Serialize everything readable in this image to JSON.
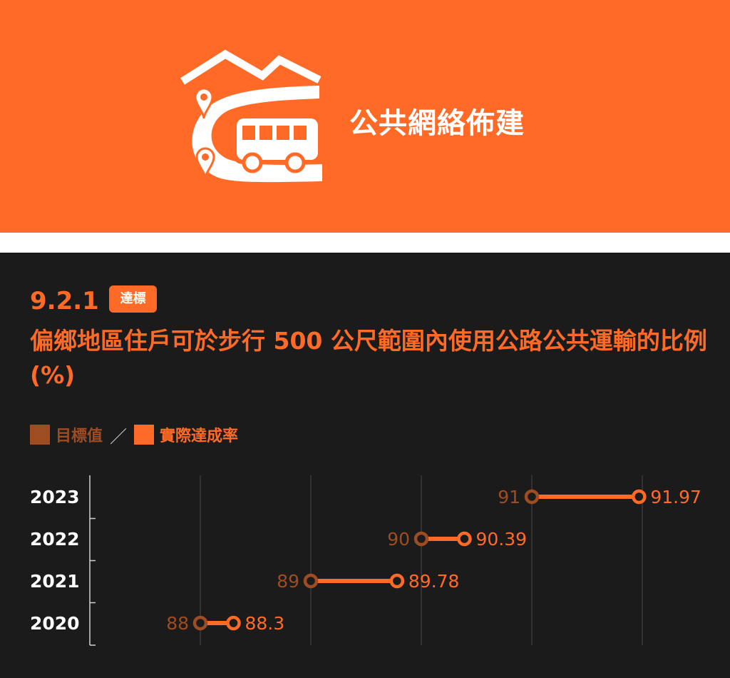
{
  "header": {
    "title": "公共網絡佈建",
    "icon": "bus-road-mountain-icon",
    "bg_color": "#ff6b27"
  },
  "indicator": {
    "code": "9.2.1",
    "badge": "達標",
    "title": "偏鄉地區住戶可於步行 500 公尺範圍內使用公路公共運輸的比例(%)"
  },
  "legend": {
    "target_label": "目標值",
    "separator": "／",
    "actual_label": "實際達成率",
    "target_color": "#9e4c21",
    "actual_color": "#ff6b27"
  },
  "chart_data": {
    "type": "dumbbell",
    "categories": [
      "2023",
      "2022",
      "2021",
      "2020"
    ],
    "series": [
      {
        "name": "目標值",
        "values": [
          91,
          90,
          89,
          88
        ]
      },
      {
        "name": "實際達成率",
        "values": [
          91.97,
          90.39,
          89.78,
          88.3
        ]
      }
    ],
    "target_labels": [
      "91",
      "90",
      "89",
      "88"
    ],
    "actual_labels": [
      "91.97",
      "90.39",
      "89.78",
      "88.3"
    ],
    "xlim": [
      87,
      92
    ],
    "grid": true
  }
}
